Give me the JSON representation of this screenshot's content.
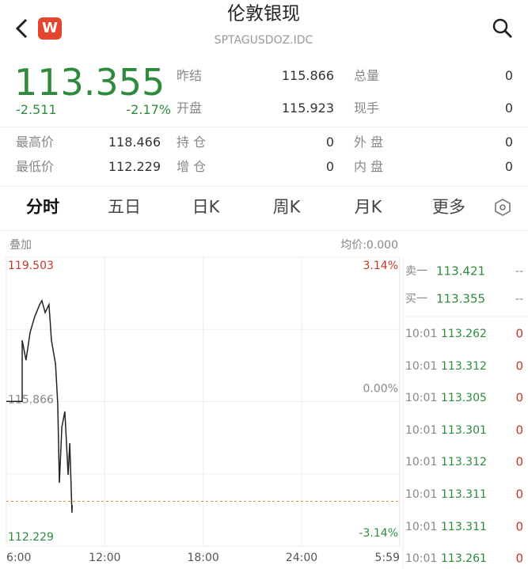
{
  "header": {
    "title": "伦敦银现",
    "subtitle": "SPTAGUSDOZ.IDC",
    "logo": "W"
  },
  "quote": {
    "price": 113.355,
    "change": -2.511,
    "change_pct": "-2.17%",
    "stats": [
      {
        "label": "昨结",
        "value": 115.866
      },
      {
        "label": "总量",
        "value": 0
      },
      {
        "label": "开盘",
        "value": 115.923
      },
      {
        "label": "现手",
        "value": 0
      }
    ],
    "ranges": [
      {
        "label": "最高价",
        "value": 118.466
      },
      {
        "label": "持 仓",
        "value": 0
      },
      {
        "label": "外 盘",
        "value": 0
      },
      {
        "label": "最低价",
        "value": 112.229
      },
      {
        "label": "增 仓",
        "value": 0
      },
      {
        "label": "内 盘",
        "value": 0
      }
    ]
  },
  "tabs": [
    "分时",
    "五日",
    "日K",
    "周K",
    "月K",
    "更多"
  ],
  "chart": {
    "type": "line",
    "overlay": "叠加",
    "average": "均价:0.000",
    "x": [
      0,
      58,
      58,
      72,
      87,
      104,
      122,
      130,
      142,
      156,
      165,
      180,
      188,
      194,
      203,
      214,
      226,
      232,
      240,
      241
    ],
    "values": [
      115.87,
      115.87,
      117.41,
      116.91,
      117.61,
      118.01,
      118.31,
      118.41,
      118.11,
      118.31,
      117.41,
      116.81,
      115.82,
      113.82,
      115.22,
      115.62,
      114.02,
      114.82,
      113.07,
      113.26
    ],
    "color": "#222222",
    "xlim": [
      0,
      1439
    ],
    "xticks": [
      {
        "value": 0,
        "label": "6:00"
      },
      {
        "value": 360,
        "label": "12:00"
      },
      {
        "value": 720,
        "label": "18:00"
      },
      {
        "value": 1080,
        "label": "24:00"
      },
      {
        "value": 1439,
        "label": "5:59"
      }
    ],
    "ylim": [
      112.229,
      119.503
    ],
    "yticks": [
      119.503,
      115.866,
      112.229
    ],
    "y2lim": [
      -3.14,
      3.14
    ],
    "y2ticks": [
      {
        "value": 3.14,
        "label": "3.14%"
      },
      {
        "value": 0,
        "label": "0.00%"
      },
      {
        "value": -3.14,
        "label": "-3.14%"
      }
    ],
    "grid": true
  },
  "orderbook": [
    {
      "label": "卖一",
      "price": 113.421,
      "volume": "--"
    },
    {
      "label": "买一",
      "price": 113.355,
      "volume": "--"
    }
  ],
  "trades": [
    {
      "time": "10:01",
      "price": 113.262,
      "volume": 0
    },
    {
      "time": "10:01",
      "price": 113.312,
      "volume": 0
    },
    {
      "time": "10:01",
      "price": 113.305,
      "volume": 0
    },
    {
      "time": "10:01",
      "price": 113.301,
      "volume": 0
    },
    {
      "time": "10:01",
      "price": 113.312,
      "volume": 0
    },
    {
      "time": "10:01",
      "price": 113.311,
      "volume": 0
    },
    {
      "time": "10:01",
      "price": 113.311,
      "volume": 0
    },
    {
      "time": "10:01",
      "price": 113.261,
      "volume": 0
    }
  ]
}
